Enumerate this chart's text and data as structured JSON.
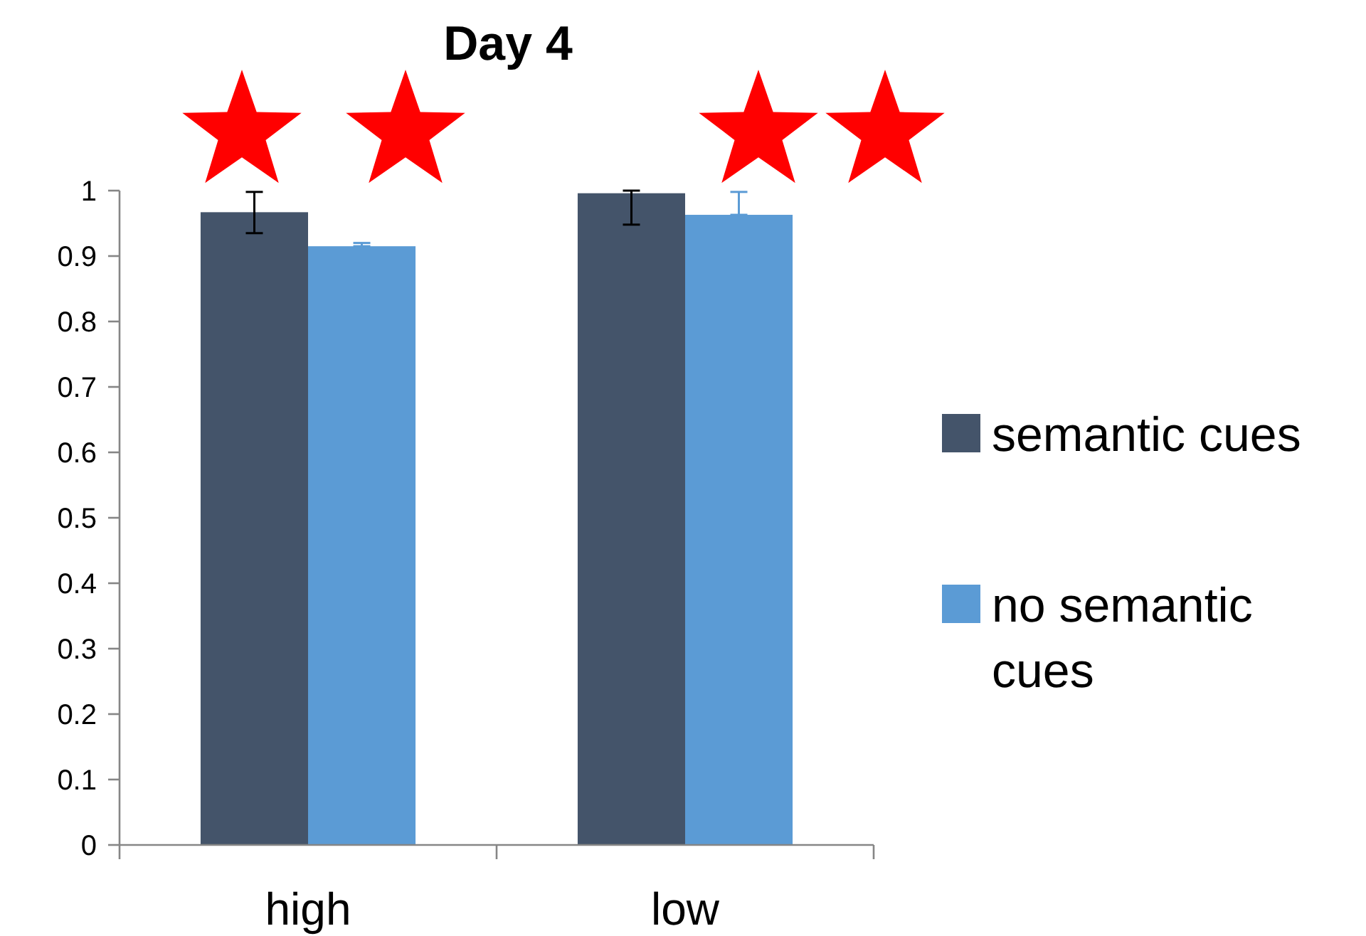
{
  "chart_data": {
    "type": "bar",
    "title": "Day 4",
    "categories": [
      "high",
      "low"
    ],
    "series": [
      {
        "name": "semantic cues",
        "color": "#44546a",
        "values": [
          0.967,
          0.996
        ],
        "errors": [
          [
            0.935,
            0.998
          ],
          [
            0.948,
            1.0
          ]
        ]
      },
      {
        "name": "no semantic cues",
        "color": "#5b9bd5",
        "values": [
          0.915,
          0.963
        ],
        "errors": [
          [
            0.915,
            0.92
          ],
          [
            0.963,
            0.998
          ]
        ]
      }
    ],
    "ylim": [
      0,
      1
    ],
    "yticks": [
      0,
      {
        "value": 0.1,
        "label": "0.1"
      },
      {
        "value": 0.2,
        "label": "0.2"
      },
      {
        "value": 0.3,
        "label": "0.3"
      },
      {
        "value": 0.4,
        "label": "0.4"
      },
      {
        "value": 0.5,
        "label": "0.5"
      },
      {
        "value": 0.6,
        "label": "0.6"
      },
      {
        "value": 0.7,
        "label": "0.7"
      },
      {
        "value": 0.8,
        "label": "0.8"
      },
      {
        "value": 0.9,
        "label": "0.9"
      },
      1
    ],
    "grid": false,
    "legend": "right"
  }
}
